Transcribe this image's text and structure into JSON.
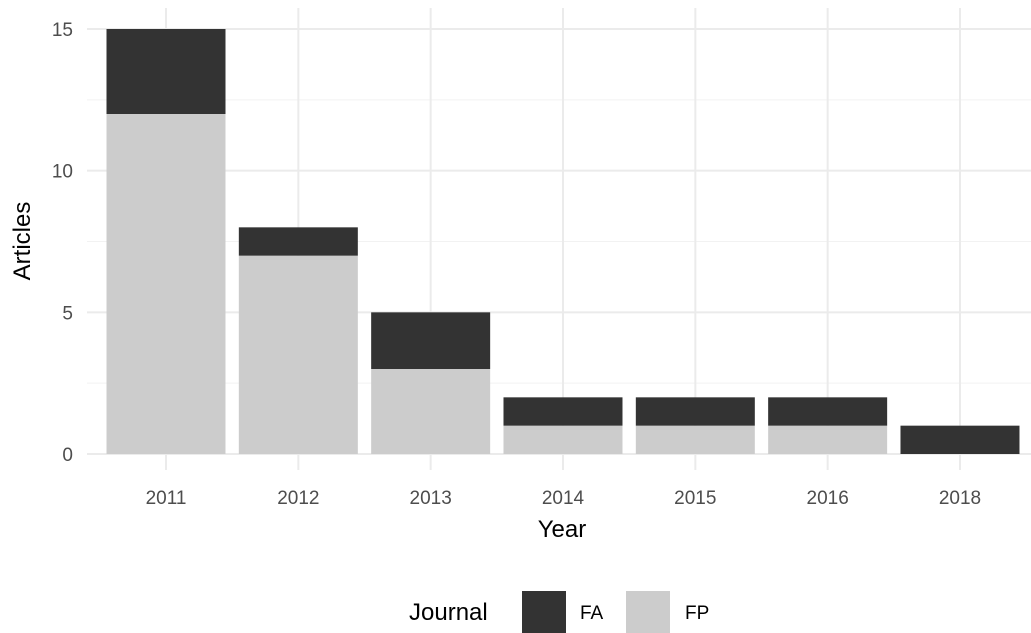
{
  "chart_data": {
    "type": "bar",
    "stacked": true,
    "categories": [
      "2011",
      "2012",
      "2013",
      "2014",
      "2015",
      "2016",
      "2018"
    ],
    "series": [
      {
        "name": "FA",
        "values": [
          3,
          1,
          2,
          1,
          1,
          1,
          1
        ],
        "color": "#333333"
      },
      {
        "name": "FP",
        "values": [
          12,
          7,
          3,
          1,
          1,
          1,
          0
        ],
        "color": "#cccccc"
      }
    ],
    "xlabel": "Year",
    "ylabel": "Articles",
    "ylim": [
      0,
      15
    ],
    "yticks": [
      0,
      5,
      10,
      15
    ],
    "grid": true,
    "legend": {
      "title": "Journal",
      "placement": "bottom",
      "entries": [
        "FA",
        "FP"
      ]
    }
  }
}
